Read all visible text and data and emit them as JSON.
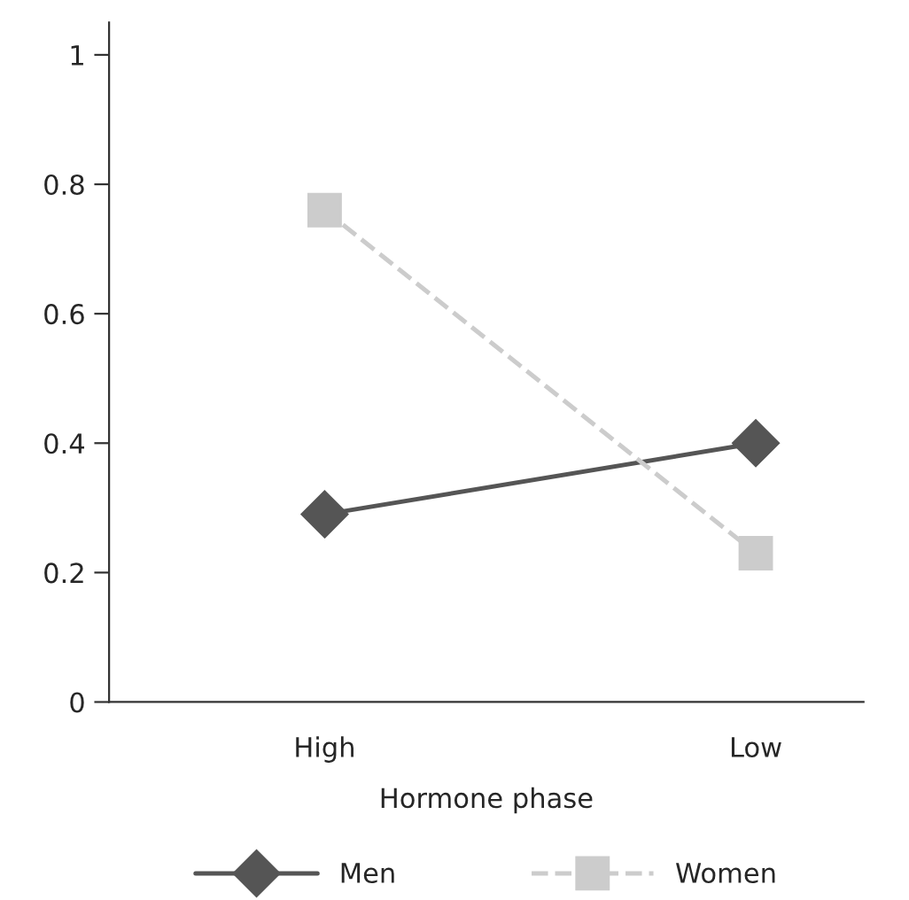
{
  "chart_data": {
    "type": "line",
    "xlabel": "Hormone phase",
    "categories": [
      "High",
      "Low"
    ],
    "series": [
      {
        "name": "Men",
        "color": "#555555",
        "values": [
          0.29,
          0.4
        ],
        "marker": "diamond",
        "line_style": "solid"
      },
      {
        "name": "Women",
        "color": "#cccccc",
        "values": [
          0.76,
          0.23
        ],
        "marker": "square",
        "line_style": "dashed"
      }
    ],
    "ylim": [
      0,
      1.05
    ],
    "yticks": [
      0,
      0.2,
      0.4,
      0.6,
      0.8,
      1
    ],
    "grid": false,
    "legend": "bottom"
  }
}
